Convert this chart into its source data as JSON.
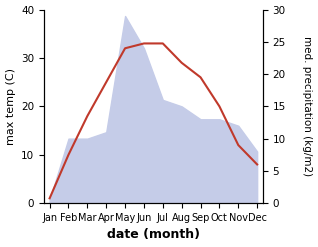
{
  "months": [
    "Jan",
    "Feb",
    "Mar",
    "Apr",
    "May",
    "Jun",
    "Jul",
    "Aug",
    "Sep",
    "Oct",
    "Nov",
    "Dec"
  ],
  "temp": [
    1,
    10,
    18,
    25,
    32,
    33,
    33,
    29,
    26,
    20,
    12,
    8
  ],
  "precip": [
    0.5,
    10,
    10,
    11,
    29,
    24,
    16,
    15,
    13,
    13,
    12,
    8
  ],
  "temp_color": "#c0392b",
  "precip_fill_color": "#c5cce8",
  "left_ylabel": "max temp (C)",
  "right_ylabel": "med. precipitation (kg/m2)",
  "xlabel": "date (month)",
  "ylim_left": [
    0,
    40
  ],
  "ylim_right": [
    0,
    30
  ],
  "bg_color": "#ffffff",
  "label_fontsize": 8,
  "tick_fontsize": 7.5
}
